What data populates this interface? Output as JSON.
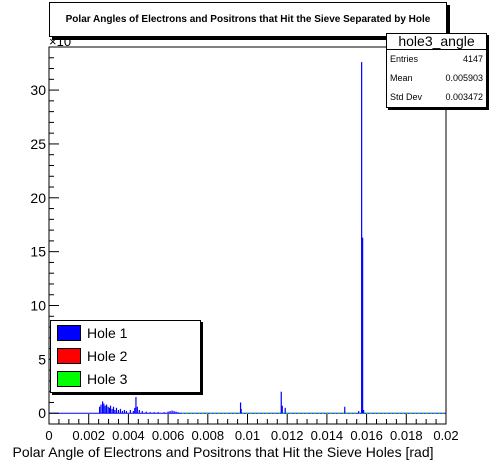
{
  "chart_data": {
    "type": "bar",
    "title": "Polar Angles of Electrons and Positrons that Hit the Sieve Separated by Hole",
    "xlabel": "Polar Angle of Electrons and Positrons that Hit the Sieve Holes [rad]",
    "ylabel": "",
    "xlim": [
      0,
      0.02
    ],
    "ylim": [
      -1,
      34
    ],
    "y_multiplier_label": "×10",
    "x_ticks": [
      "0",
      "0.002",
      "0.004",
      "0.006",
      "0.008",
      "0.01",
      "0.012",
      "0.014",
      "0.016",
      "0.018",
      "0.02"
    ],
    "y_ticks": [
      "0",
      "5",
      "10",
      "15",
      "20",
      "25",
      "30"
    ],
    "grid": false,
    "legend_position": "bottom-left",
    "series": [
      {
        "name": "Hole 1",
        "color": "#0000ff",
        "points": [
          [
            0.00255,
            0.6
          ],
          [
            0.00262,
            0.8
          ],
          [
            0.0027,
            1.1
          ],
          [
            0.00276,
            0.9
          ],
          [
            0.00283,
            0.7
          ],
          [
            0.0029,
            0.8
          ],
          [
            0.00298,
            0.6
          ],
          [
            0.00305,
            0.5
          ],
          [
            0.0031,
            0.7
          ],
          [
            0.00318,
            0.4
          ],
          [
            0.00325,
            0.6
          ],
          [
            0.00332,
            0.3
          ],
          [
            0.0034,
            0.5
          ],
          [
            0.0035,
            0.3
          ],
          [
            0.0036,
            0.4
          ],
          [
            0.0037,
            0.2
          ],
          [
            0.0038,
            0.3
          ],
          [
            0.0039,
            0.2
          ],
          [
            0.0041,
            0.3
          ],
          [
            0.00425,
            0.2
          ],
          [
            0.00432,
            0.5
          ],
          [
            0.00438,
            1.5
          ],
          [
            0.00445,
            0.6
          ],
          [
            0.00455,
            0.3
          ],
          [
            0.0047,
            0.2
          ],
          [
            0.0049,
            0.15
          ],
          [
            0.0051,
            0.1
          ],
          [
            0.0053,
            0.1
          ],
          [
            0.0055,
            0.1
          ],
          [
            0.0058,
            0.1
          ],
          [
            0.006,
            0.15
          ],
          [
            0.0061,
            0.2
          ],
          [
            0.0062,
            0.25
          ],
          [
            0.0063,
            0.2
          ],
          [
            0.0064,
            0.15
          ],
          [
            0.0065,
            0.1
          ],
          [
            0.00965,
            1.0
          ],
          [
            0.00968,
            0.4
          ],
          [
            0.0117,
            2.0
          ],
          [
            0.01175,
            0.7
          ],
          [
            0.0119,
            0.5
          ],
          [
            0.0149,
            0.6
          ],
          [
            0.0156,
            0.2
          ],
          [
            0.01575,
            32.6
          ],
          [
            0.0158,
            16.3
          ],
          [
            0.01585,
            0.3
          ]
        ]
      },
      {
        "name": "Hole 2",
        "color": "#ff0000",
        "points": []
      },
      {
        "name": "Hole 3",
        "color": "#00ff00",
        "points": []
      }
    ]
  },
  "stats": {
    "name": "hole3_angle",
    "rows": [
      {
        "label": "Entries",
        "value": "4147"
      },
      {
        "label": "Mean",
        "value": "0.005903"
      },
      {
        "label": "Std Dev",
        "value": "0.003472"
      }
    ]
  }
}
